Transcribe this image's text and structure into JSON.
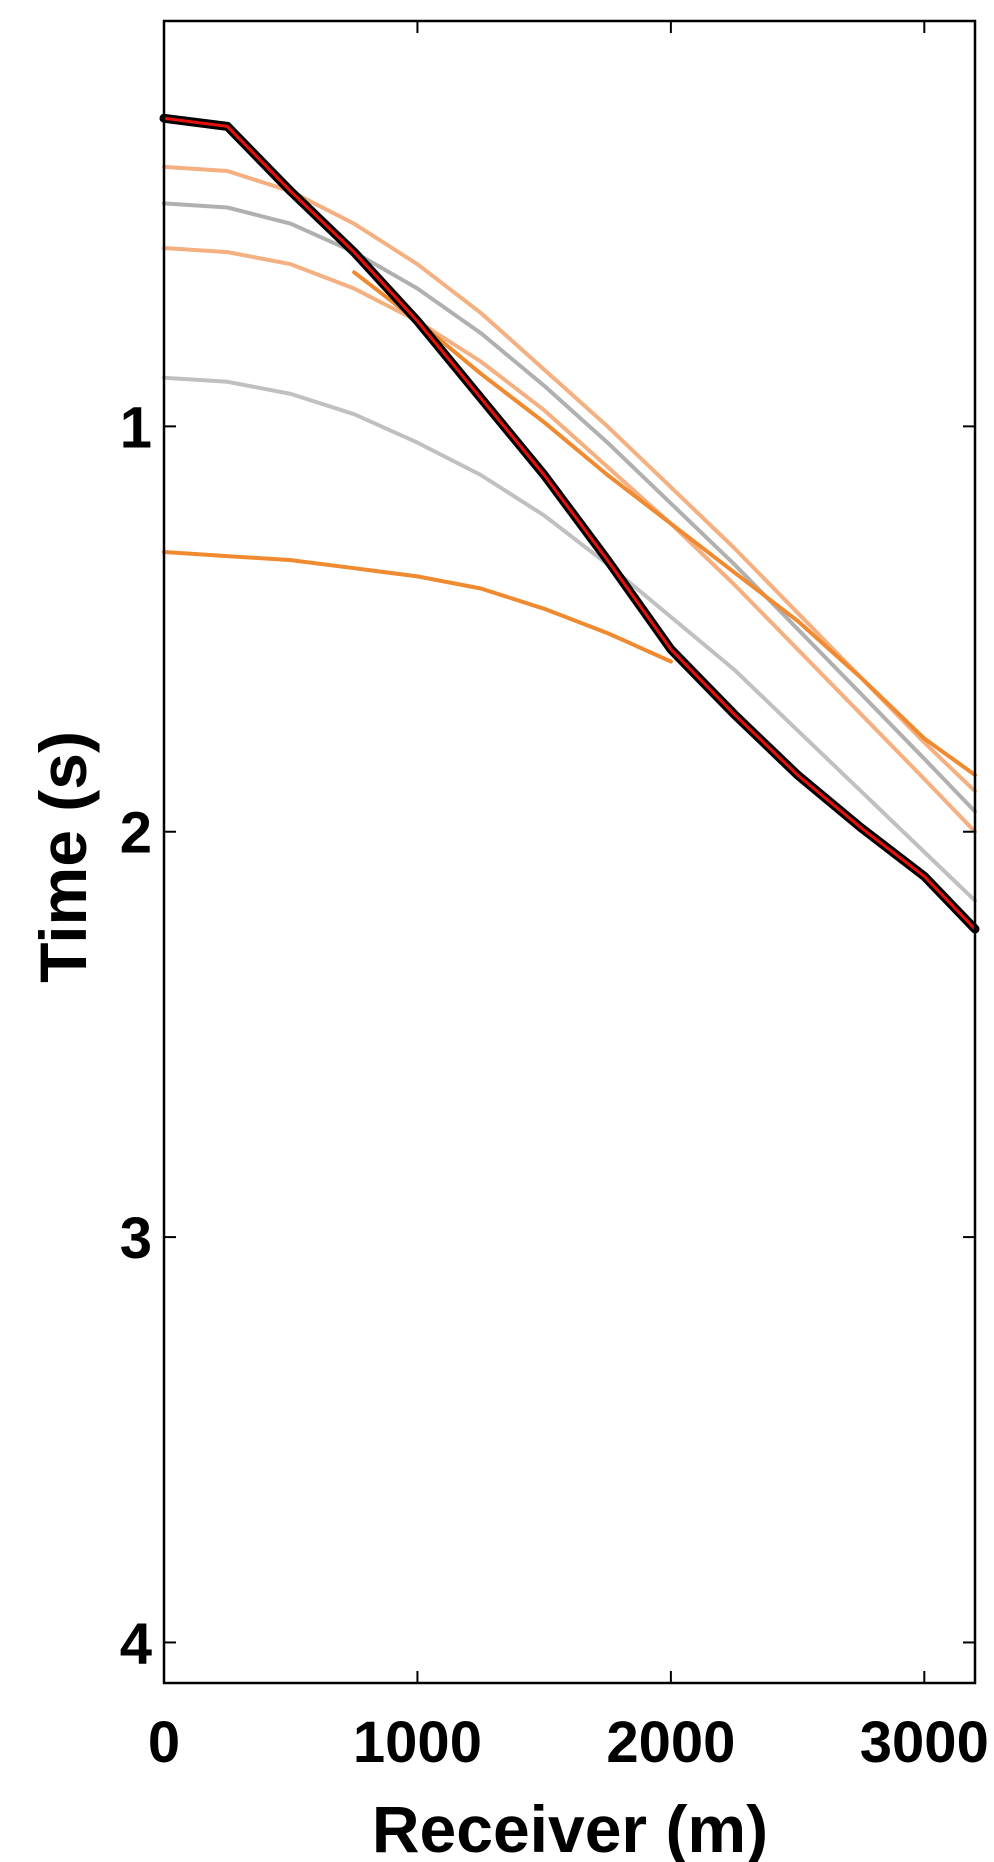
{
  "chart_data": {
    "type": "line",
    "x_label": "Receiver (m)",
    "y_label": "Time (s)",
    "xlim": [
      0,
      3200
    ],
    "ylim": [
      0,
      4.1
    ],
    "y_inverted": true,
    "xticks": [
      0,
      1000,
      2000,
      3000
    ],
    "yticks": [
      1,
      2,
      3,
      4
    ],
    "x": [
      0,
      250,
      500,
      750,
      1000,
      1250,
      1500,
      1750,
      2000,
      2250,
      2500,
      2750,
      3000,
      3200
    ],
    "series": [
      {
        "color": "#f4b080",
        "values": [
          0.36,
          0.37,
          0.42,
          0.5,
          0.6,
          0.72,
          0.86,
          1.0,
          1.15,
          1.3,
          1.46,
          1.62,
          1.78,
          1.9
        ]
      },
      {
        "color": "#b0b0b0",
        "values": [
          0.45,
          0.46,
          0.5,
          0.57,
          0.66,
          0.77,
          0.9,
          1.04,
          1.19,
          1.34,
          1.5,
          1.66,
          1.82,
          1.95
        ]
      },
      {
        "color": "#f4b080",
        "values": [
          0.56,
          0.57,
          0.6,
          0.66,
          0.74,
          0.84,
          0.96,
          1.1,
          1.24,
          1.39,
          1.55,
          1.71,
          1.87,
          2.0
        ]
      },
      {
        "color": "#c0c0c0",
        "values": [
          0.88,
          0.89,
          0.92,
          0.97,
          1.04,
          1.12,
          1.22,
          1.34,
          1.47,
          1.6,
          1.75,
          1.9,
          2.05,
          2.17
        ]
      },
      {
        "color": "#f08a30",
        "values": [
          1.31,
          1.32,
          1.33,
          1.35,
          1.37,
          1.4,
          1.45,
          1.51,
          1.58,
          null,
          null,
          null,
          null,
          null
        ]
      },
      {
        "color": "#f08a30",
        "values": [
          null,
          null,
          null,
          0.62,
          0.74,
          0.87,
          0.99,
          1.12,
          1.24,
          1.36,
          1.48,
          1.62,
          1.77,
          1.86
        ]
      },
      {
        "color": "#000000",
        "values": [
          0.24,
          0.26,
          0.42,
          0.57,
          0.74,
          0.93,
          1.12,
          1.33,
          1.55,
          1.71,
          1.86,
          1.99,
          2.11,
          2.24
        ]
      },
      {
        "color": "#e8100a",
        "values": [
          0.24,
          0.26,
          0.42,
          0.57,
          0.74,
          0.93,
          1.12,
          1.33,
          1.55,
          1.71,
          1.86,
          1.99,
          2.11,
          2.24
        ]
      }
    ]
  }
}
